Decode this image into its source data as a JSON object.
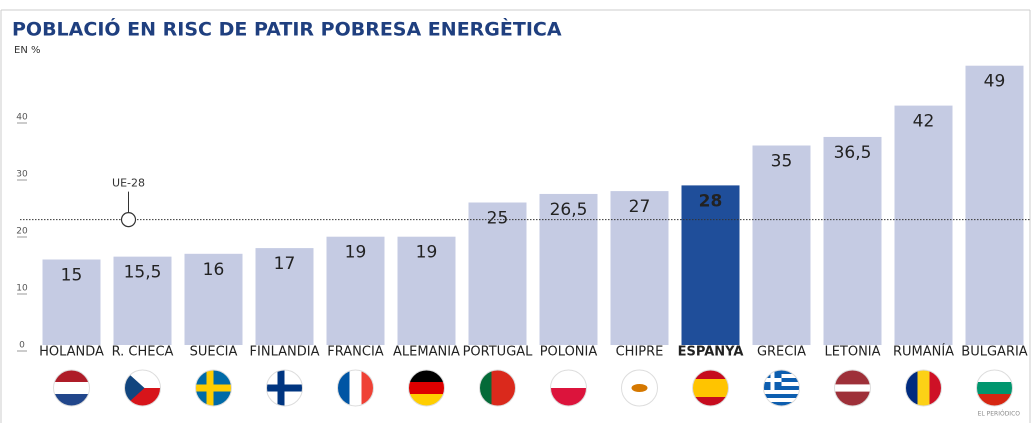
{
  "chart_data": {
    "type": "bar",
    "title": "POBLACIÓ EN RISC DE PATIR POBRESA ENERGÈTICA",
    "subtitle": "EN %",
    "categories": [
      "HOLANDA",
      "R. CHECA",
      "SUECIA",
      "FINLANDIA",
      "FRANCIA",
      "ALEMANIA",
      "PORTUGAL",
      "POLONIA",
      "CHIPRE",
      "ESPANYA",
      "GRECIA",
      "LETONIA",
      "RUMANÍA",
      "BULGARIA"
    ],
    "values": [
      15,
      15.5,
      16,
      17,
      19,
      19,
      25,
      26.5,
      27,
      28,
      35,
      36.5,
      42,
      49
    ],
    "value_labels": [
      "15",
      "15,5",
      "16",
      "17",
      "19",
      "19",
      "25",
      "26,5",
      "27",
      "28",
      "35",
      "36,5",
      "42",
      "49"
    ],
    "color": "#c5cbe3",
    "colors": [
      "#c5cbe3",
      "#c5cbe3",
      "#c5cbe3",
      "#c5cbe3",
      "#c5cbe3",
      "#c5cbe3",
      "#c5cbe3",
      "#c5cbe3",
      "#c5cbe3",
      "#1f4e9a",
      "#c5cbe3",
      "#c5cbe3",
      "#c5cbe3",
      "#c5cbe3"
    ],
    "ylim": [
      0,
      50
    ],
    "yticks": [
      0,
      10,
      20,
      30,
      40
    ],
    "reference_line": {
      "label": "UE-28",
      "value": 22
    },
    "source": "EL PERIÓDICO"
  }
}
